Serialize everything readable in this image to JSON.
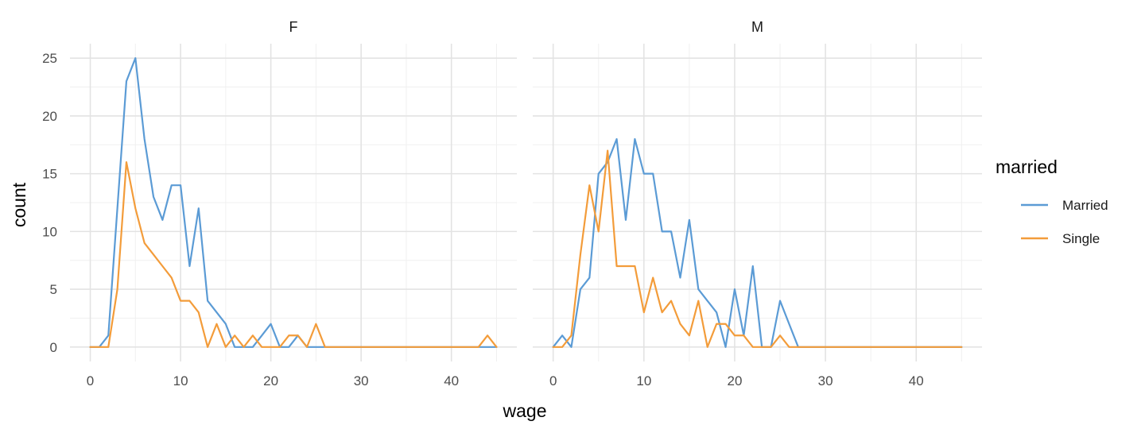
{
  "chart_data": {
    "type": "line",
    "xlabel": "wage",
    "ylabel": "count",
    "xlim": [
      0,
      45
    ],
    "ylim": [
      0,
      25
    ],
    "x_ticks": [
      0,
      10,
      20,
      30,
      40
    ],
    "y_ticks": [
      0,
      5,
      10,
      15,
      20,
      25
    ],
    "grid": true,
    "legend": {
      "title": "married",
      "placement": "right"
    },
    "colors": {
      "Married": "#5B9BD5",
      "Single": "#F39C3A"
    },
    "facets": [
      {
        "label": "F",
        "series": [
          {
            "name": "Married",
            "x": [
              0,
              1,
              2,
              3,
              4,
              5,
              6,
              7,
              8,
              9,
              10,
              11,
              12,
              13,
              14,
              15,
              16,
              17,
              18,
              19,
              20,
              21,
              22,
              23,
              24,
              25,
              26,
              27,
              28,
              29,
              30,
              31,
              32,
              33,
              34,
              35,
              36,
              37,
              38,
              39,
              40,
              41,
              42,
              43,
              44,
              45
            ],
            "y": [
              0,
              0,
              1,
              12,
              23,
              25,
              18,
              13,
              11,
              14,
              14,
              7,
              12,
              4,
              3,
              2,
              0,
              0,
              0,
              1,
              2,
              0,
              0,
              1,
              0,
              0,
              0,
              0,
              0,
              0,
              0,
              0,
              0,
              0,
              0,
              0,
              0,
              0,
              0,
              0,
              0,
              0,
              0,
              0,
              0,
              0
            ]
          },
          {
            "name": "Single",
            "x": [
              0,
              1,
              2,
              3,
              4,
              5,
              6,
              7,
              8,
              9,
              10,
              11,
              12,
              13,
              14,
              15,
              16,
              17,
              18,
              19,
              20,
              21,
              22,
              23,
              24,
              25,
              26,
              27,
              28,
              29,
              30,
              31,
              32,
              33,
              34,
              35,
              36,
              37,
              38,
              39,
              40,
              41,
              42,
              43,
              44,
              45
            ],
            "y": [
              0,
              0,
              0,
              5,
              16,
              12,
              9,
              8,
              7,
              6,
              4,
              4,
              3,
              0,
              2,
              0,
              1,
              0,
              1,
              0,
              0,
              0,
              1,
              1,
              0,
              2,
              0,
              0,
              0,
              0,
              0,
              0,
              0,
              0,
              0,
              0,
              0,
              0,
              0,
              0,
              0,
              0,
              0,
              0,
              1,
              0
            ]
          }
        ]
      },
      {
        "label": "M",
        "series": [
          {
            "name": "Married",
            "x": [
              0,
              1,
              2,
              3,
              4,
              5,
              6,
              7,
              8,
              9,
              10,
              11,
              12,
              13,
              14,
              15,
              16,
              17,
              18,
              19,
              20,
              21,
              22,
              23,
              24,
              25,
              26,
              27,
              28,
              29,
              30,
              31,
              32,
              33,
              34,
              35,
              36,
              37,
              38,
              39,
              40,
              41,
              42,
              43,
              44,
              45
            ],
            "y": [
              0,
              1,
              0,
              5,
              6,
              15,
              16,
              18,
              11,
              18,
              15,
              15,
              10,
              10,
              6,
              11,
              5,
              4,
              3,
              0,
              5,
              1,
              7,
              0,
              0,
              4,
              2,
              0,
              0,
              0,
              0,
              0,
              0,
              0,
              0,
              0,
              0,
              0,
              0,
              0,
              0,
              0,
              0,
              0,
              0,
              0
            ]
          },
          {
            "name": "Single",
            "x": [
              0,
              1,
              2,
              3,
              4,
              5,
              6,
              7,
              8,
              9,
              10,
              11,
              12,
              13,
              14,
              15,
              16,
              17,
              18,
              19,
              20,
              21,
              22,
              23,
              24,
              25,
              26,
              27,
              28,
              29,
              30,
              31,
              32,
              33,
              34,
              35,
              36,
              37,
              38,
              39,
              40,
              41,
              42,
              43,
              44,
              45
            ],
            "y": [
              0,
              0,
              1,
              8,
              14,
              10,
              17,
              7,
              7,
              7,
              3,
              6,
              3,
              4,
              2,
              1,
              4,
              0,
              2,
              2,
              1,
              1,
              0,
              0,
              0,
              1,
              0,
              0,
              0,
              0,
              0,
              0,
              0,
              0,
              0,
              0,
              0,
              0,
              0,
              0,
              0,
              0,
              0,
              0,
              0,
              0
            ]
          }
        ]
      }
    ]
  }
}
